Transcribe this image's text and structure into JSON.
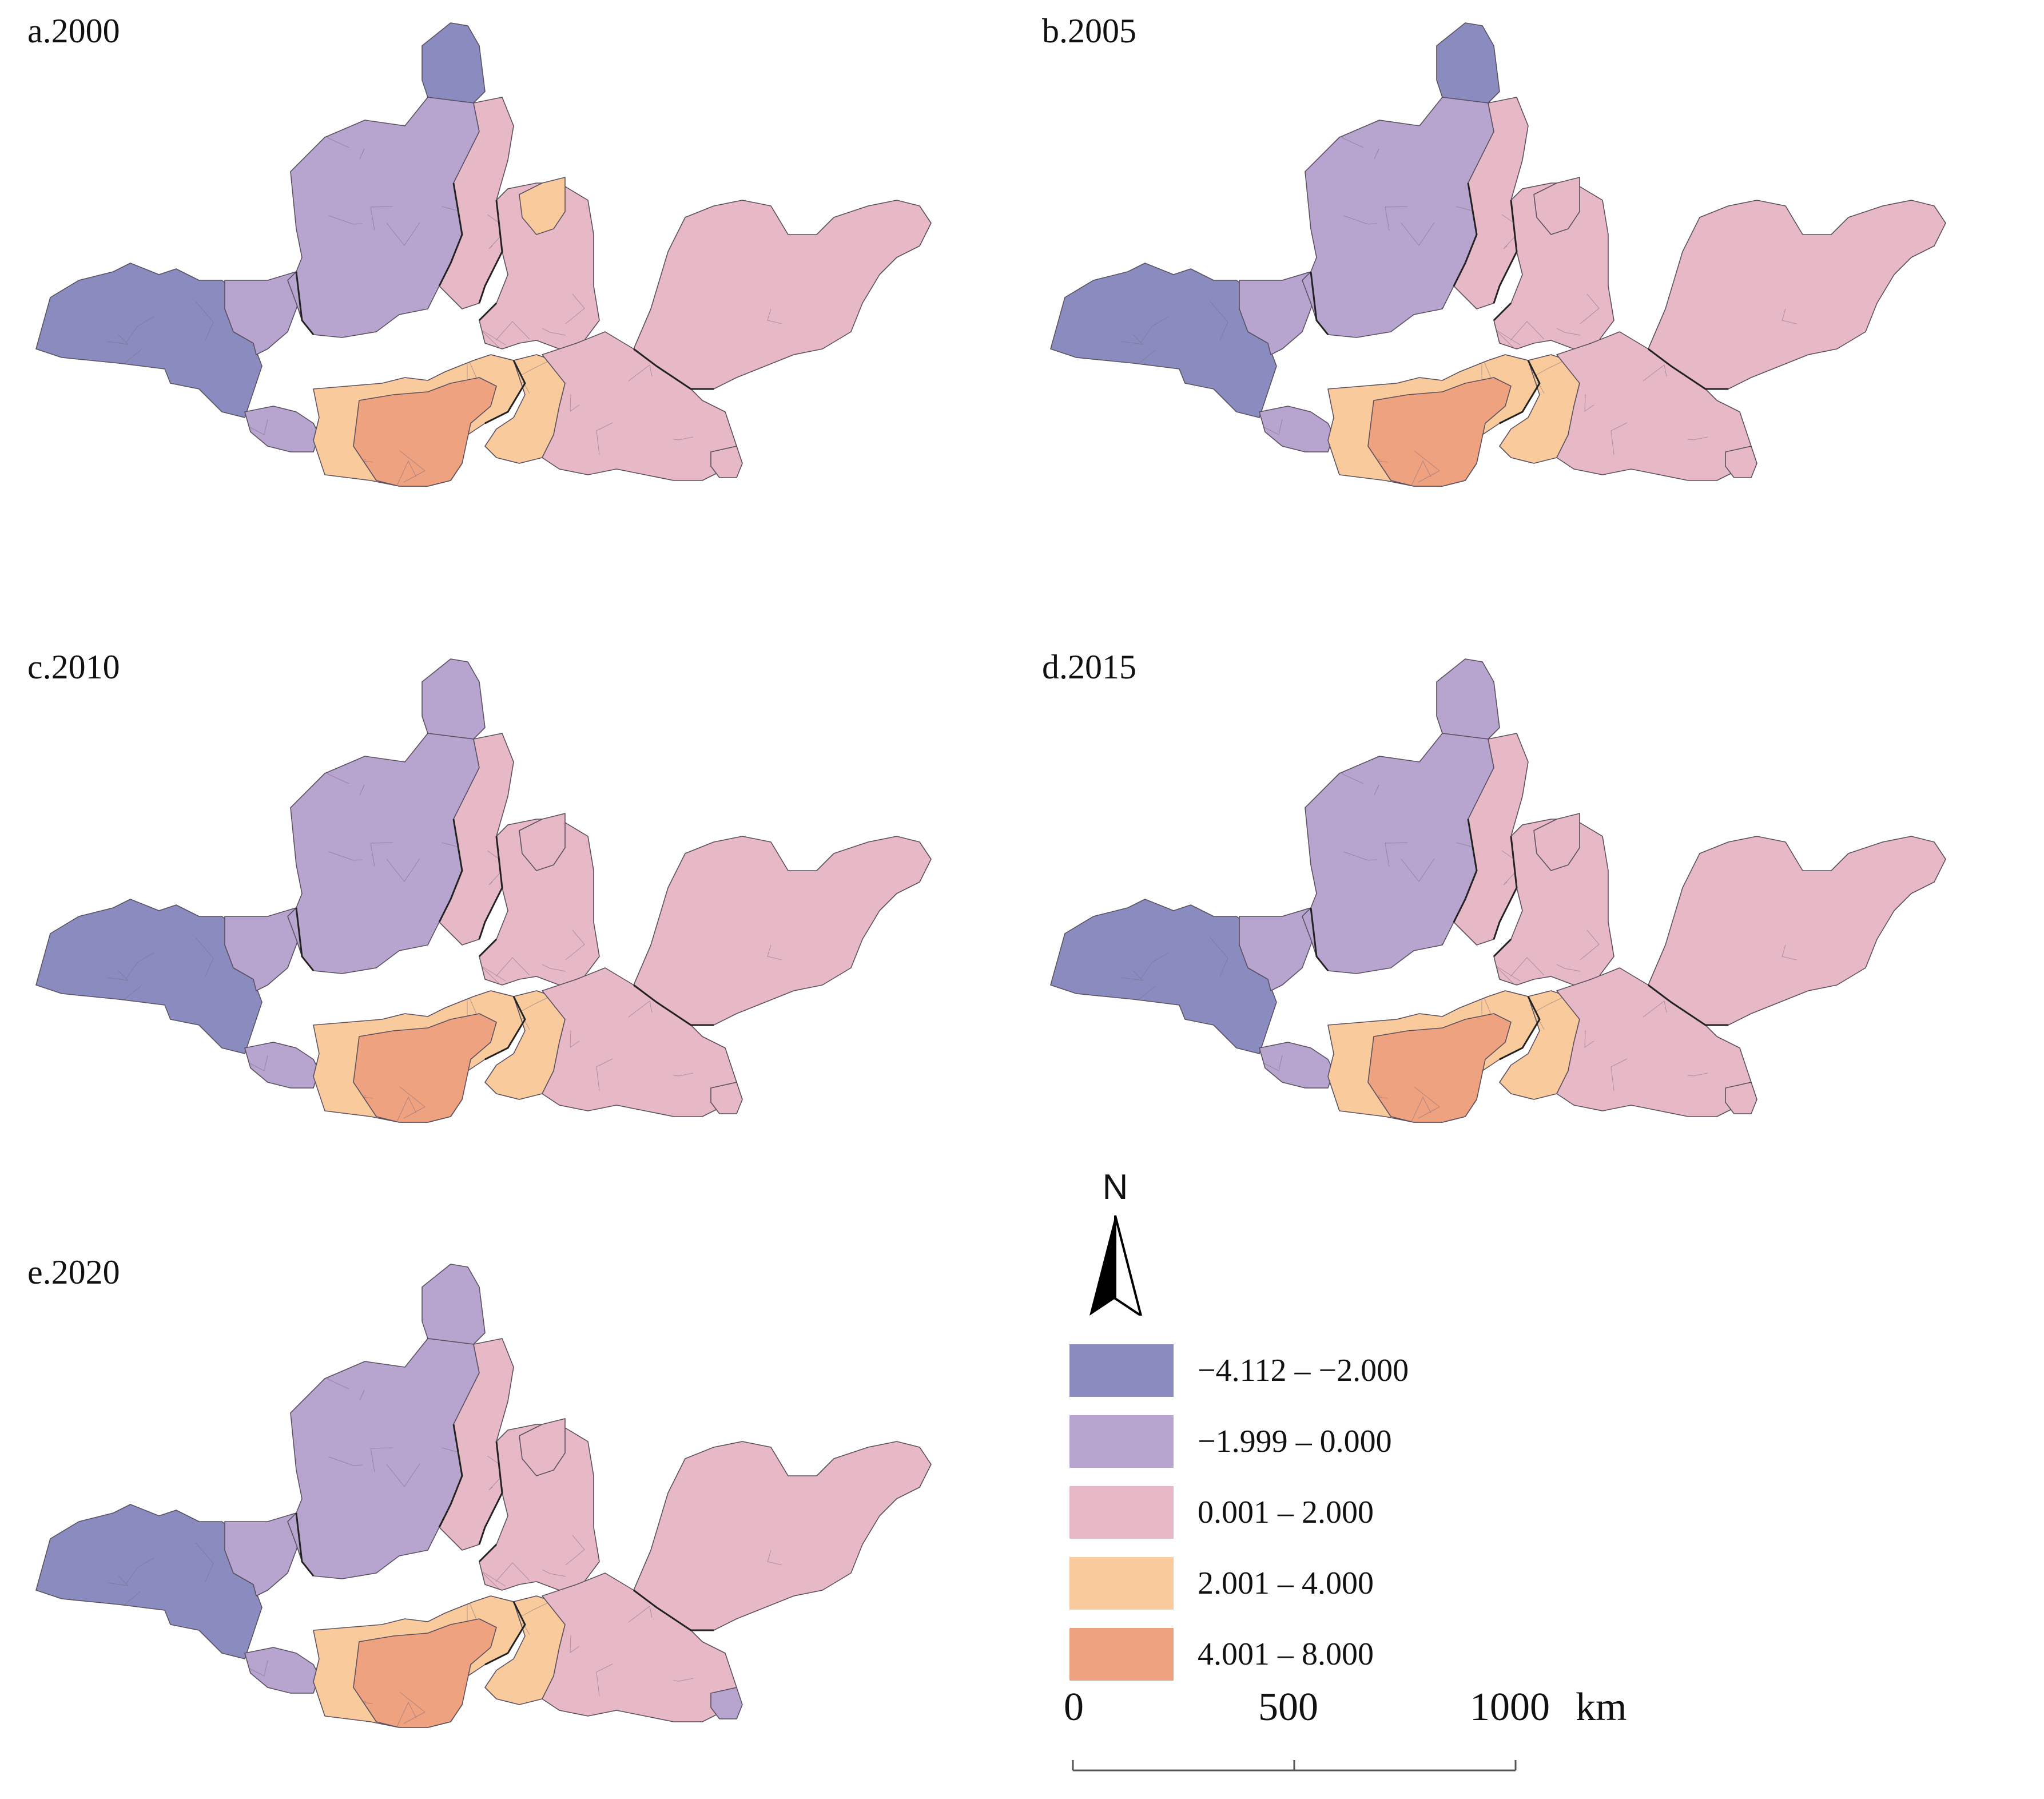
{
  "panels": [
    {
      "id": "a",
      "label": "a.2000",
      "regions": {
        "west": "c1",
        "west_mid": "c2",
        "north_tip": "c1",
        "north_block": "c2",
        "north_strip": "c3",
        "central_n": "c3",
        "central_n_spot": "c4",
        "south_west": "c2",
        "south_core": "c5",
        "south_ring": "c4",
        "mid_ring": "c4",
        "east_south": "c3",
        "east_big": "c3",
        "se_spot": "c3"
      }
    },
    {
      "id": "b",
      "label": "b.2005",
      "regions": {
        "west": "c1",
        "west_mid": "c2",
        "north_tip": "c1",
        "north_block": "c2",
        "north_strip": "c3",
        "central_n": "c3",
        "central_n_spot": "c3",
        "south_west": "c2",
        "south_core": "c5",
        "south_ring": "c4",
        "mid_ring": "c4",
        "east_south": "c3",
        "east_big": "c3",
        "se_spot": "c3"
      }
    },
    {
      "id": "c",
      "label": "c.2010",
      "regions": {
        "west": "c1",
        "west_mid": "c2",
        "north_tip": "c2",
        "north_block": "c2",
        "north_strip": "c3",
        "central_n": "c3",
        "central_n_spot": "c3",
        "south_west": "c2",
        "south_core": "c5",
        "south_ring": "c4",
        "mid_ring": "c4",
        "east_south": "c3",
        "east_big": "c3",
        "se_spot": "c3"
      }
    },
    {
      "id": "d",
      "label": "d.2015",
      "regions": {
        "west": "c1",
        "west_mid": "c2",
        "north_tip": "c2",
        "north_block": "c2",
        "north_strip": "c3",
        "central_n": "c3",
        "central_n_spot": "c3",
        "south_west": "c2",
        "south_core": "c5",
        "south_ring": "c4",
        "mid_ring": "c4",
        "east_south": "c3",
        "east_big": "c3",
        "se_spot": "c3"
      }
    },
    {
      "id": "e",
      "label": "e.2020",
      "regions": {
        "west": "c1",
        "west_mid": "c2",
        "north_tip": "c2",
        "north_block": "c2",
        "north_strip": "c3",
        "central_n": "c3",
        "central_n_spot": "c3",
        "south_west": "c2",
        "south_core": "c5",
        "south_ring": "c4",
        "mid_ring": "c4",
        "east_south": "c3",
        "east_big": "c3",
        "se_spot": "c2"
      }
    }
  ],
  "legend": {
    "north_label": "N",
    "classes": [
      {
        "key": "c1",
        "label": "−4.112 – −2.000",
        "color": "#8a8cc0"
      },
      {
        "key": "c2",
        "label": "−1.999 – 0.000",
        "color": "#b7a4cf"
      },
      {
        "key": "c3",
        "label": "0.001 – 2.000",
        "color": "#e7b9c7"
      },
      {
        "key": "c4",
        "label": "2.001 – 4.000",
        "color": "#f9cb9c"
      },
      {
        "key": "c5",
        "label": "4.001 – 8.000",
        "color": "#eea27f"
      }
    ]
  },
  "scale": {
    "tick_0": "0",
    "tick_mid": "500",
    "tick_max": "1000",
    "unit": "km"
  }
}
